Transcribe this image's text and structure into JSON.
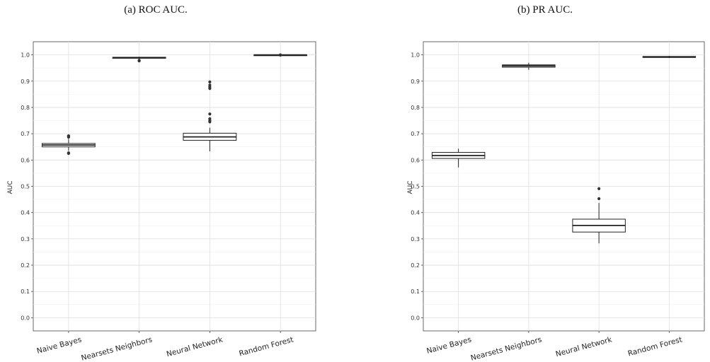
{
  "panels": [
    {
      "caption": "(a) ROC AUC."
    },
    {
      "caption": "(b) PR AUC."
    }
  ],
  "chart_data": [
    {
      "type": "box",
      "title": "(a) ROC AUC.",
      "xlabel": "",
      "ylabel": "AUC",
      "ylim": [
        -0.05,
        1.05
      ],
      "yticks": [
        "0.0",
        "0.1",
        "0.2",
        "0.3",
        "0.4",
        "0.5",
        "0.6",
        "0.7",
        "0.8",
        "0.9",
        "1.0"
      ],
      "grid": true,
      "categories": [
        "Naive Bayes",
        "Nearsets Neighbors",
        "Neural Network",
        "Random Forest"
      ],
      "boxes": [
        {
          "category": "Naive Bayes",
          "whisker_low": 0.635,
          "q1": 0.65,
          "median": 0.657,
          "q3": 0.663,
          "whisker_high": 0.68,
          "outliers": [
            0.625,
            0.627,
            0.687,
            0.69,
            0.692
          ]
        },
        {
          "category": "Nearsets Neighbors",
          "whisker_low": 0.984,
          "q1": 0.987,
          "median": 0.989,
          "q3": 0.991,
          "whisker_high": 0.993,
          "outliers": [
            0.977,
            0.979
          ]
        },
        {
          "category": "Neural Network",
          "whisker_low": 0.633,
          "q1": 0.675,
          "median": 0.688,
          "q3": 0.702,
          "whisker_high": 0.723,
          "outliers": [
            0.745,
            0.75,
            0.757,
            0.775,
            0.872,
            0.878,
            0.885,
            0.897
          ]
        },
        {
          "category": "Random Forest",
          "whisker_low": 0.998,
          "q1": 0.999,
          "median": 1.0,
          "q3": 1.0,
          "whisker_high": 1.0,
          "outliers": [
            0.999,
            1.0
          ]
        }
      ]
    },
    {
      "type": "box",
      "title": "(b) PR AUC.",
      "xlabel": "",
      "ylabel": "AUC",
      "ylim": [
        -0.05,
        1.05
      ],
      "yticks": [
        "0.0",
        "0.1",
        "0.2",
        "0.3",
        "0.4",
        "0.5",
        "0.6",
        "0.7",
        "0.8",
        "0.9",
        "1.0"
      ],
      "grid": true,
      "categories": [
        "Naive Bayes",
        "Nearsets Neighbors",
        "Neural Network",
        "Random Forest"
      ],
      "boxes": [
        {
          "category": "Naive Bayes",
          "whisker_low": 0.572,
          "q1": 0.606,
          "median": 0.617,
          "q3": 0.629,
          "whisker_high": 0.643,
          "outliers": []
        },
        {
          "category": "Nearsets Neighbors",
          "whisker_low": 0.943,
          "q1": 0.953,
          "median": 0.958,
          "q3": 0.962,
          "whisker_high": 0.97,
          "outliers": []
        },
        {
          "category": "Neural Network",
          "whisker_low": 0.283,
          "q1": 0.326,
          "median": 0.351,
          "q3": 0.375,
          "whisker_high": 0.437,
          "outliers": [
            0.453,
            0.491
          ]
        },
        {
          "category": "Random Forest",
          "whisker_low": 0.988,
          "q1": 0.99,
          "median": 0.992,
          "q3": 0.994,
          "whisker_high": 0.996,
          "outliers": []
        }
      ]
    }
  ]
}
